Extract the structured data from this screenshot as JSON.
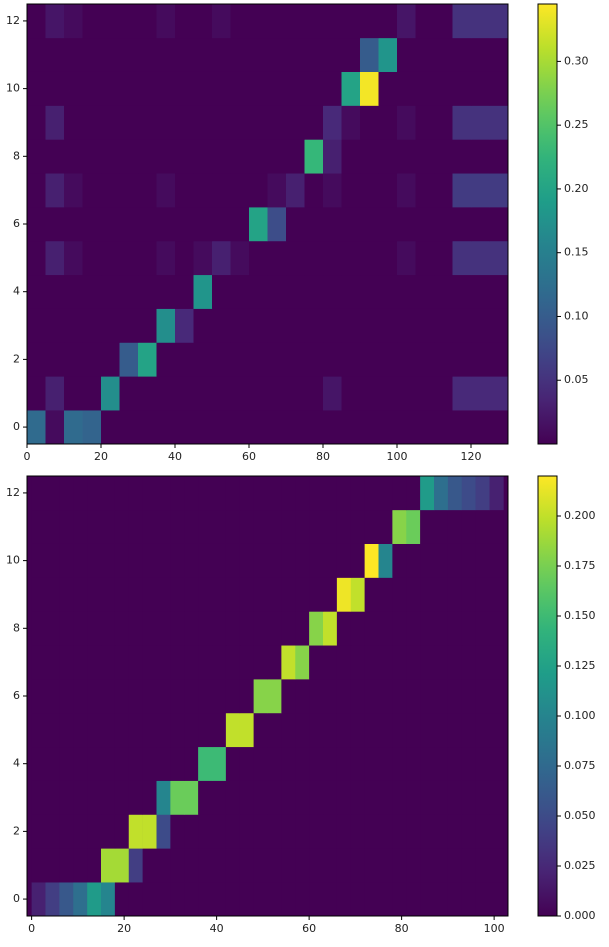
{
  "chart_data": [
    {
      "type": "heatmap",
      "colormap": "viridis",
      "xlim": [
        0,
        130
      ],
      "ylim": [
        -0.5,
        12.5
      ],
      "xticks": [
        0,
        20,
        40,
        60,
        80,
        100,
        120
      ],
      "yticks": [
        0,
        2,
        4,
        6,
        8,
        10,
        12
      ],
      "xbins": [
        0,
        5,
        10,
        15,
        20,
        25,
        30,
        35,
        40,
        45,
        50,
        55,
        60,
        65,
        70,
        75,
        80,
        85,
        90,
        95,
        100,
        105,
        110,
        115,
        120,
        125,
        130
      ],
      "rows": [
        0,
        1,
        2,
        3,
        4,
        5,
        6,
        7,
        8,
        9,
        10,
        11,
        12
      ],
      "clim": [
        0,
        0.345
      ],
      "cticks": [
        0.05,
        {
          "value": 0.1,
          "label": "0.10"
        },
        0.15,
        {
          "value": 0.2,
          "label": "0.20"
        },
        0.25,
        {
          "value": 0.3,
          "label": "0.30"
        }
      ],
      "z": [
        [
          0.12,
          0.01,
          0.12,
          0.11,
          0,
          0,
          0,
          0,
          0,
          0,
          0,
          0,
          0,
          0,
          0,
          0,
          0,
          0,
          0,
          0,
          0,
          0,
          0,
          0,
          0,
          0
        ],
        [
          0,
          0.03,
          0,
          0,
          0.17,
          0,
          0,
          0,
          0,
          0,
          0,
          0,
          0,
          0,
          0,
          0,
          0.02,
          0,
          0,
          0,
          0,
          0,
          0,
          0.04,
          0.04,
          0.04
        ],
        [
          0,
          0,
          0,
          0,
          0,
          0.1,
          0.2,
          0,
          0,
          0,
          0,
          0,
          0,
          0,
          0,
          0,
          0,
          0,
          0,
          0,
          0,
          0,
          0,
          0,
          0,
          0
        ],
        [
          0,
          0,
          0,
          0,
          0,
          0,
          0,
          0.17,
          0.04,
          0,
          0,
          0,
          0,
          0,
          0,
          0,
          0,
          0,
          0,
          0,
          0,
          0,
          0,
          0,
          0,
          0
        ],
        [
          0,
          0,
          0,
          0,
          0,
          0,
          0,
          0,
          0,
          0.18,
          0,
          0,
          0,
          0,
          0,
          0,
          0,
          0,
          0,
          0,
          0,
          0,
          0,
          0,
          0,
          0
        ],
        [
          0,
          0.03,
          0.01,
          0,
          0,
          0,
          0,
          0.01,
          0,
          0.01,
          0.03,
          0.01,
          0,
          0,
          0,
          0,
          0,
          0,
          0,
          0,
          0.01,
          0,
          0,
          0.05,
          0.05,
          0.05
        ],
        [
          0,
          0,
          0,
          0,
          0,
          0,
          0,
          0,
          0,
          0,
          0,
          0,
          0.2,
          0.08,
          0,
          0,
          0,
          0,
          0,
          0,
          0,
          0,
          0,
          0,
          0,
          0
        ],
        [
          0,
          0.03,
          0.01,
          0,
          0,
          0,
          0,
          0.01,
          0,
          0,
          0,
          0,
          0,
          0.01,
          0.03,
          0,
          0.01,
          0,
          0,
          0,
          0.01,
          0,
          0,
          0.06,
          0.06,
          0.06
        ],
        [
          0,
          0,
          0,
          0,
          0,
          0,
          0,
          0,
          0,
          0,
          0,
          0,
          0,
          0,
          0,
          0.23,
          0.03,
          0,
          0,
          0,
          0,
          0,
          0,
          0,
          0,
          0
        ],
        [
          0,
          0.03,
          0,
          0,
          0,
          0,
          0,
          0,
          0,
          0,
          0,
          0,
          0,
          0,
          0,
          0,
          0.04,
          0.01,
          0,
          0,
          0.01,
          0,
          0,
          0.05,
          0.05,
          0.05
        ],
        [
          0,
          0,
          0,
          0,
          0,
          0,
          0,
          0,
          0,
          0,
          0,
          0,
          0,
          0,
          0,
          0,
          0,
          0.2,
          0.34,
          0,
          0,
          0,
          0,
          0,
          0,
          0
        ],
        [
          0,
          0,
          0,
          0,
          0,
          0,
          0,
          0,
          0,
          0,
          0,
          0,
          0,
          0,
          0,
          0,
          0,
          0,
          0.1,
          0.18,
          0,
          0,
          0,
          0,
          0,
          0
        ],
        [
          0,
          0.02,
          0.01,
          0,
          0,
          0,
          0,
          0.01,
          0,
          0,
          0.01,
          0,
          0,
          0,
          0,
          0,
          0,
          0,
          0,
          0,
          0.02,
          0,
          0,
          0.05,
          0.05,
          0.05
        ]
      ]
    },
    {
      "type": "heatmap",
      "colormap": "viridis",
      "xlim": [
        -1,
        103
      ],
      "ylim": [
        -0.5,
        12.5
      ],
      "xticks": [
        0,
        20,
        40,
        60,
        80,
        100
      ],
      "yticks": [
        0,
        2,
        4,
        6,
        8,
        10,
        12
      ],
      "xbins": [
        0,
        3,
        6,
        9,
        12,
        15,
        18,
        21,
        24,
        27,
        30,
        33,
        36,
        39,
        42,
        45,
        48,
        51,
        54,
        57,
        60,
        63,
        66,
        69,
        72,
        75,
        78,
        81,
        84,
        87,
        90,
        93,
        96,
        99,
        102
      ],
      "rows": [
        0,
        1,
        2,
        3,
        4,
        5,
        6,
        7,
        8,
        9,
        10,
        11,
        12
      ],
      "clim": [
        0,
        0.22
      ],
      "cticks": [
        {
          "value": 0,
          "label": "0.000"
        },
        0.025,
        {
          "value": 0.05,
          "label": "0.050"
        },
        0.075,
        {
          "value": 0.1,
          "label": "0.100"
        },
        0.125,
        {
          "value": 0.15,
          "label": "0.150"
        },
        0.175,
        {
          "value": 0.2,
          "label": "0.200"
        }
      ],
      "z": [
        [
          0.02,
          0.04,
          0.06,
          0.08,
          0.12,
          0.1,
          0,
          0,
          0,
          0,
          0,
          0,
          0,
          0,
          0,
          0,
          0,
          0,
          0,
          0,
          0,
          0,
          0,
          0,
          0,
          0,
          0,
          0,
          0,
          0,
          0,
          0,
          0,
          0
        ],
        [
          0,
          0,
          0,
          0,
          0,
          0.19,
          0.19,
          0.04,
          0,
          0,
          0,
          0,
          0,
          0,
          0,
          0,
          0,
          0,
          0,
          0,
          0,
          0,
          0,
          0,
          0,
          0,
          0,
          0,
          0,
          0,
          0,
          0,
          0,
          0
        ],
        [
          0,
          0,
          0,
          0,
          0,
          0,
          0,
          0.2,
          0.2,
          0.05,
          0,
          0,
          0,
          0,
          0,
          0,
          0,
          0,
          0,
          0,
          0,
          0,
          0,
          0,
          0,
          0,
          0,
          0,
          0,
          0,
          0,
          0,
          0,
          0
        ],
        [
          0,
          0,
          0,
          0,
          0,
          0,
          0,
          0,
          0,
          0.1,
          0.17,
          0.17,
          0,
          0,
          0,
          0,
          0,
          0,
          0,
          0,
          0,
          0,
          0,
          0,
          0,
          0,
          0,
          0,
          0,
          0,
          0,
          0,
          0,
          0
        ],
        [
          0,
          0,
          0,
          0,
          0,
          0,
          0,
          0,
          0,
          0,
          0,
          0,
          0.15,
          0.15,
          0,
          0,
          0,
          0,
          0,
          0,
          0,
          0,
          0,
          0,
          0,
          0,
          0,
          0,
          0,
          0,
          0,
          0,
          0,
          0
        ],
        [
          0,
          0,
          0,
          0,
          0,
          0,
          0,
          0,
          0,
          0,
          0,
          0,
          0,
          0,
          0.2,
          0.2,
          0,
          0,
          0,
          0,
          0,
          0,
          0,
          0,
          0,
          0,
          0,
          0,
          0,
          0,
          0,
          0,
          0,
          0
        ],
        [
          0,
          0,
          0,
          0,
          0,
          0,
          0,
          0,
          0,
          0,
          0,
          0,
          0,
          0,
          0,
          0,
          0.18,
          0.18,
          0,
          0,
          0,
          0,
          0,
          0,
          0,
          0,
          0,
          0,
          0,
          0,
          0,
          0,
          0,
          0
        ],
        [
          0,
          0,
          0,
          0,
          0,
          0,
          0,
          0,
          0,
          0,
          0,
          0,
          0,
          0,
          0,
          0,
          0,
          0,
          0.2,
          0.18,
          0,
          0,
          0,
          0,
          0,
          0,
          0,
          0,
          0,
          0,
          0,
          0,
          0,
          0
        ],
        [
          0,
          0,
          0,
          0,
          0,
          0,
          0,
          0,
          0,
          0,
          0,
          0,
          0,
          0,
          0,
          0,
          0,
          0,
          0,
          0,
          0.18,
          0.2,
          0,
          0,
          0,
          0,
          0,
          0,
          0,
          0,
          0,
          0,
          0,
          0
        ],
        [
          0,
          0,
          0,
          0,
          0,
          0,
          0,
          0,
          0,
          0,
          0,
          0,
          0,
          0,
          0,
          0,
          0,
          0,
          0,
          0,
          0,
          0,
          0.215,
          0.2,
          0,
          0,
          0,
          0,
          0,
          0,
          0,
          0,
          0,
          0
        ],
        [
          0,
          0,
          0,
          0,
          0,
          0,
          0,
          0,
          0,
          0,
          0,
          0,
          0,
          0,
          0,
          0,
          0,
          0,
          0,
          0,
          0,
          0,
          0,
          0,
          0.22,
          0.1,
          0,
          0,
          0,
          0,
          0,
          0,
          0,
          0
        ],
        [
          0,
          0,
          0,
          0,
          0,
          0,
          0,
          0,
          0,
          0,
          0,
          0,
          0,
          0,
          0,
          0,
          0,
          0,
          0,
          0,
          0,
          0,
          0,
          0,
          0,
          0,
          0.18,
          0.17,
          0,
          0,
          0,
          0,
          0,
          0
        ],
        [
          0,
          0,
          0,
          0,
          0,
          0,
          0,
          0,
          0,
          0,
          0,
          0,
          0,
          0,
          0,
          0,
          0,
          0,
          0,
          0,
          0,
          0,
          0,
          0,
          0,
          0,
          0,
          0,
          0.12,
          0.08,
          0.06,
          0.05,
          0.04,
          0.02
        ]
      ]
    }
  ]
}
